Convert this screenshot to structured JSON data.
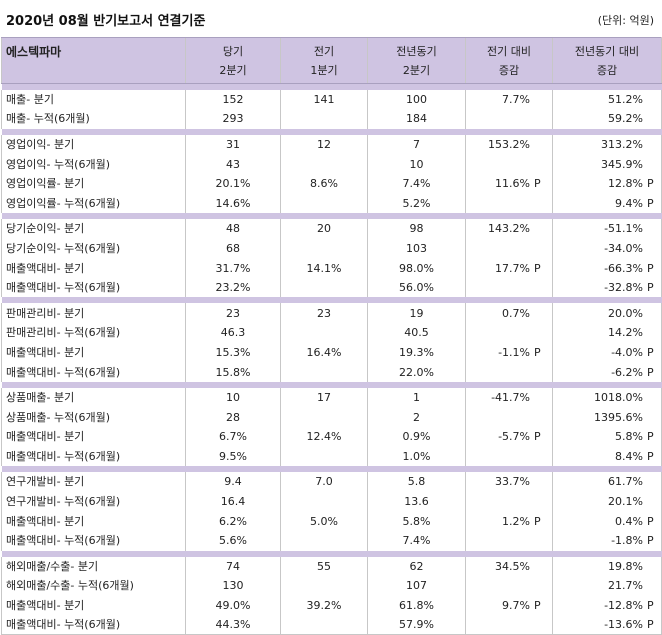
{
  "title": "2020년 08월 반기보고서 연결기준",
  "unit": "(단위: 억원)",
  "company": "에스텍파마",
  "headers": {
    "h1_line1": "당기",
    "h1_line2": "2분기",
    "h2_line1": "전기",
    "h2_line2": "1분기",
    "h3_line1": "전년동기",
    "h3_line2": "2분기",
    "h4_line1": "전기 대비",
    "h4_line2": "증감",
    "h5_line1": "전년동기 대비",
    "h5_line2": "증감"
  },
  "groups": [
    {
      "rows": [
        {
          "label": "매출- 분기",
          "cur": "152",
          "prev": "141",
          "yoy": "100",
          "qoq": "7.7%",
          "qoq_p": "",
          "yoyc": "51.2%",
          "yoyc_p": ""
        },
        {
          "label": "매출- 누적(6개월)",
          "cur": "293",
          "prev": "",
          "yoy": "184",
          "qoq": "",
          "qoq_p": "",
          "yoyc": "59.2%",
          "yoyc_p": ""
        }
      ]
    },
    {
      "rows": [
        {
          "label": "영업이익- 분기",
          "cur": "31",
          "prev": "12",
          "yoy": "7",
          "qoq": "153.2%",
          "qoq_p": "",
          "yoyc": "313.2%",
          "yoyc_p": ""
        },
        {
          "label": "영업이익- 누적(6개월)",
          "cur": "43",
          "prev": "",
          "yoy": "10",
          "qoq": "",
          "qoq_p": "",
          "yoyc": "345.9%",
          "yoyc_p": ""
        },
        {
          "label": "영업이익률- 분기",
          "cur": "20.1%",
          "prev": "8.6%",
          "yoy": "7.4%",
          "qoq": "11.6%",
          "qoq_p": "P",
          "yoyc": "12.8%",
          "yoyc_p": "P"
        },
        {
          "label": "영업이익률- 누적(6개월)",
          "cur": "14.6%",
          "prev": "",
          "yoy": "5.2%",
          "qoq": "",
          "qoq_p": "",
          "yoyc": "9.4%",
          "yoyc_p": "P"
        }
      ]
    },
    {
      "rows": [
        {
          "label": "당기순이익- 분기",
          "cur": "48",
          "prev": "20",
          "yoy": "98",
          "qoq": "143.2%",
          "qoq_p": "",
          "yoyc": "-51.1%",
          "yoyc_p": ""
        },
        {
          "label": "당기순이익- 누적(6개월)",
          "cur": "68",
          "prev": "",
          "yoy": "103",
          "qoq": "",
          "qoq_p": "",
          "yoyc": "-34.0%",
          "yoyc_p": ""
        },
        {
          "label": "매출액대비- 분기",
          "cur": "31.7%",
          "prev": "14.1%",
          "yoy": "98.0%",
          "qoq": "17.7%",
          "qoq_p": "P",
          "yoyc": "-66.3%",
          "yoyc_p": "P"
        },
        {
          "label": "매출액대비- 누적(6개월)",
          "cur": "23.2%",
          "prev": "",
          "yoy": "56.0%",
          "qoq": "",
          "qoq_p": "",
          "yoyc": "-32.8%",
          "yoyc_p": "P"
        }
      ]
    },
    {
      "rows": [
        {
          "label": "판매관리비- 분기",
          "cur": "23",
          "prev": "23",
          "yoy": "19",
          "qoq": "0.7%",
          "qoq_p": "",
          "yoyc": "20.0%",
          "yoyc_p": ""
        },
        {
          "label": "판매관리비- 누적(6개월)",
          "cur": "46.3",
          "prev": "",
          "yoy": "40.5",
          "qoq": "",
          "qoq_p": "",
          "yoyc": "14.2%",
          "yoyc_p": ""
        },
        {
          "label": "매출액대비- 분기",
          "cur": "15.3%",
          "prev": "16.4%",
          "yoy": "19.3%",
          "qoq": "-1.1%",
          "qoq_p": "P",
          "yoyc": "-4.0%",
          "yoyc_p": "P"
        },
        {
          "label": "매출액대비- 누적(6개월)",
          "cur": "15.8%",
          "prev": "",
          "yoy": "22.0%",
          "qoq": "",
          "qoq_p": "",
          "yoyc": "-6.2%",
          "yoyc_p": "P"
        }
      ]
    },
    {
      "rows": [
        {
          "label": "상품매출- 분기",
          "cur": "10",
          "prev": "17",
          "yoy": "1",
          "qoq": "-41.7%",
          "qoq_p": "",
          "yoyc": "1018.0%",
          "yoyc_p": ""
        },
        {
          "label": "상품매출- 누적(6개월)",
          "cur": "28",
          "prev": "",
          "yoy": "2",
          "qoq": "",
          "qoq_p": "",
          "yoyc": "1395.6%",
          "yoyc_p": ""
        },
        {
          "label": "매출액대비- 분기",
          "cur": "6.7%",
          "prev": "12.4%",
          "yoy": "0.9%",
          "qoq": "-5.7%",
          "qoq_p": "P",
          "yoyc": "5.8%",
          "yoyc_p": "P"
        },
        {
          "label": "매출액대비- 누적(6개월)",
          "cur": "9.5%",
          "prev": "",
          "yoy": "1.0%",
          "qoq": "",
          "qoq_p": "",
          "yoyc": "8.4%",
          "yoyc_p": "P"
        }
      ]
    },
    {
      "rows": [
        {
          "label": "연구개발비- 분기",
          "cur": "9.4",
          "prev": "7.0",
          "yoy": "5.8",
          "qoq": "33.7%",
          "qoq_p": "",
          "yoyc": "61.7%",
          "yoyc_p": ""
        },
        {
          "label": "연구개발비- 누적(6개월)",
          "cur": "16.4",
          "prev": "",
          "yoy": "13.6",
          "qoq": "",
          "qoq_p": "",
          "yoyc": "20.1%",
          "yoyc_p": ""
        },
        {
          "label": "매출액대비- 분기",
          "cur": "6.2%",
          "prev": "5.0%",
          "yoy": "5.8%",
          "qoq": "1.2%",
          "qoq_p": "P",
          "yoyc": "0.4%",
          "yoyc_p": "P"
        },
        {
          "label": "매출액대비- 누적(6개월)",
          "cur": "5.6%",
          "prev": "",
          "yoy": "7.4%",
          "qoq": "",
          "qoq_p": "",
          "yoyc": "-1.8%",
          "yoyc_p": "P"
        }
      ]
    },
    {
      "rows": [
        {
          "label": "해외매출/수출- 분기",
          "cur": "74",
          "prev": "55",
          "yoy": "62",
          "qoq": "34.5%",
          "qoq_p": "",
          "yoyc": "19.8%",
          "yoyc_p": ""
        },
        {
          "label": "해외매출/수출- 누적(6개월)",
          "cur": "130",
          "prev": "",
          "yoy": "107",
          "qoq": "",
          "qoq_p": "",
          "yoyc": "21.7%",
          "yoyc_p": ""
        },
        {
          "label": "매출액대비- 분기",
          "cur": "49.0%",
          "prev": "39.2%",
          "yoy": "61.8%",
          "qoq": "9.7%",
          "qoq_p": "P",
          "yoyc": "-12.8%",
          "yoyc_p": "P"
        },
        {
          "label": "매출액대비- 누적(6개월)",
          "cur": "44.3%",
          "prev": "",
          "yoy": "57.9%",
          "qoq": "",
          "qoq_p": "",
          "yoyc": "-13.6%",
          "yoyc_p": "P"
        }
      ]
    }
  ]
}
